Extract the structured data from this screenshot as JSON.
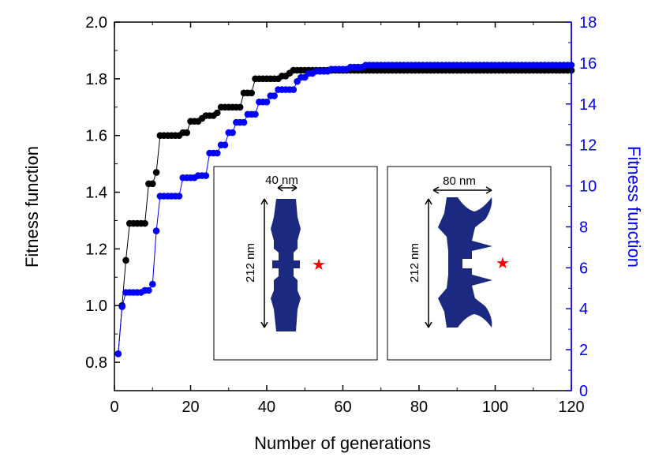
{
  "chart_data": {
    "type": "scatter",
    "xlabel": "Number of generations",
    "ylabel_left": "Fitness function",
    "ylabel_right": "Fitness function",
    "xlim": [
      0,
      120
    ],
    "ylim_left": [
      0.7,
      2.0
    ],
    "ylim_right": [
      0,
      18
    ],
    "xticks": [
      "0",
      "20",
      "40",
      "60",
      "80",
      "100",
      "120"
    ],
    "yticks_left": [
      "0.8",
      "1.0",
      "1.2",
      "1.4",
      "1.6",
      "1.8",
      "2.0"
    ],
    "yticks_right": [
      "0",
      "2",
      "4",
      "6",
      "8",
      "10",
      "12",
      "14",
      "16",
      "18"
    ],
    "colors": {
      "left": "#000000",
      "right": "#0000ff",
      "shape": "#1b2a80",
      "star": "#ff0000"
    },
    "series": [
      {
        "name": "left-axis series",
        "axis": "left",
        "color": "#000000",
        "steps": [
          [
            1,
            0.83
          ],
          [
            2,
            1.0
          ],
          [
            3,
            1.16
          ],
          [
            4,
            1.29
          ],
          [
            9,
            1.43
          ],
          [
            11,
            1.47
          ],
          [
            12,
            1.6
          ],
          [
            18,
            1.61
          ],
          [
            20,
            1.65
          ],
          [
            23,
            1.66
          ],
          [
            24,
            1.67
          ],
          [
            27,
            1.68
          ],
          [
            28,
            1.7
          ],
          [
            34,
            1.75
          ],
          [
            37,
            1.8
          ],
          [
            43,
            1.8
          ],
          [
            44,
            1.81
          ],
          [
            46,
            1.82
          ],
          [
            47,
            1.83
          ],
          [
            60,
            1.83
          ],
          [
            120,
            1.83
          ]
        ]
      },
      {
        "name": "right-axis series",
        "axis": "right",
        "color": "#0000ff",
        "steps": [
          [
            1,
            1.8
          ],
          [
            2,
            4.1
          ],
          [
            3,
            4.8
          ],
          [
            8,
            4.9
          ],
          [
            10,
            5.2
          ],
          [
            11,
            7.8
          ],
          [
            12,
            9.5
          ],
          [
            18,
            10.4
          ],
          [
            22,
            10.5
          ],
          [
            25,
            11.6
          ],
          [
            28,
            12.0
          ],
          [
            30,
            12.6
          ],
          [
            32,
            13.1
          ],
          [
            35,
            13.5
          ],
          [
            38,
            14.1
          ],
          [
            41,
            14.4
          ],
          [
            43,
            14.7
          ],
          [
            48,
            15.1
          ],
          [
            49,
            15.3
          ],
          [
            51,
            15.5
          ],
          [
            53,
            15.6
          ],
          [
            57,
            15.7
          ],
          [
            62,
            15.8
          ],
          [
            66,
            15.9
          ],
          [
            72,
            15.9
          ],
          [
            120,
            15.9
          ]
        ]
      }
    ],
    "insets": [
      {
        "width_label": "40 nm",
        "height_label": "212 nm",
        "marker": "★"
      },
      {
        "width_label": "80 nm",
        "height_label": "212 nm",
        "marker": "★"
      }
    ]
  }
}
